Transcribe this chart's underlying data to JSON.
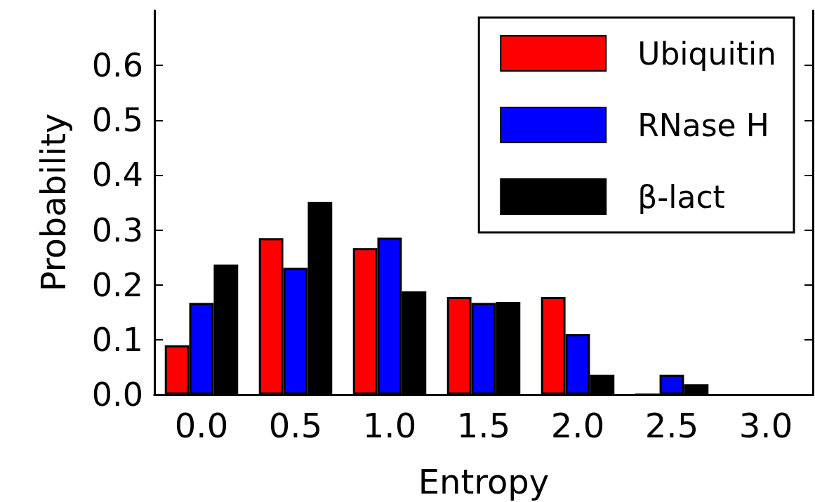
{
  "chart_data": {
    "type": "bar",
    "xlabel": "Entropy",
    "ylabel": "Probability",
    "categories": [
      "0.0",
      "0.5",
      "1.0",
      "1.5",
      "2.0",
      "2.5",
      "3.0"
    ],
    "series": [
      {
        "name": "Ubiquitin",
        "color": "#ff0000",
        "values": [
          0.09,
          0.285,
          0.267,
          0.178,
          0.178,
          0,
          null
        ]
      },
      {
        "name": "RNase H",
        "color": "#0000ff",
        "values": [
          0.167,
          0.231,
          0.286,
          0.167,
          0.11,
          0.036,
          null
        ]
      },
      {
        "name": "β-lact",
        "color": "#000000",
        "values": [
          0.237,
          0.351,
          0.188,
          0.169,
          0.036,
          0.019,
          null
        ]
      }
    ],
    "ylim": [
      0,
      0.7
    ],
    "yticks": [
      {
        "value": 0,
        "label": "0.0"
      },
      {
        "value": 0.1,
        "label": "0.1"
      },
      {
        "value": 0.2,
        "label": "0.2"
      },
      {
        "value": 0.3,
        "label": "0.3"
      },
      {
        "value": 0.4,
        "label": "0.4"
      },
      {
        "value": 0.5,
        "label": "0.5"
      },
      {
        "value": 0.6,
        "label": "0.6"
      }
    ],
    "grid": false,
    "legend": "top right"
  }
}
